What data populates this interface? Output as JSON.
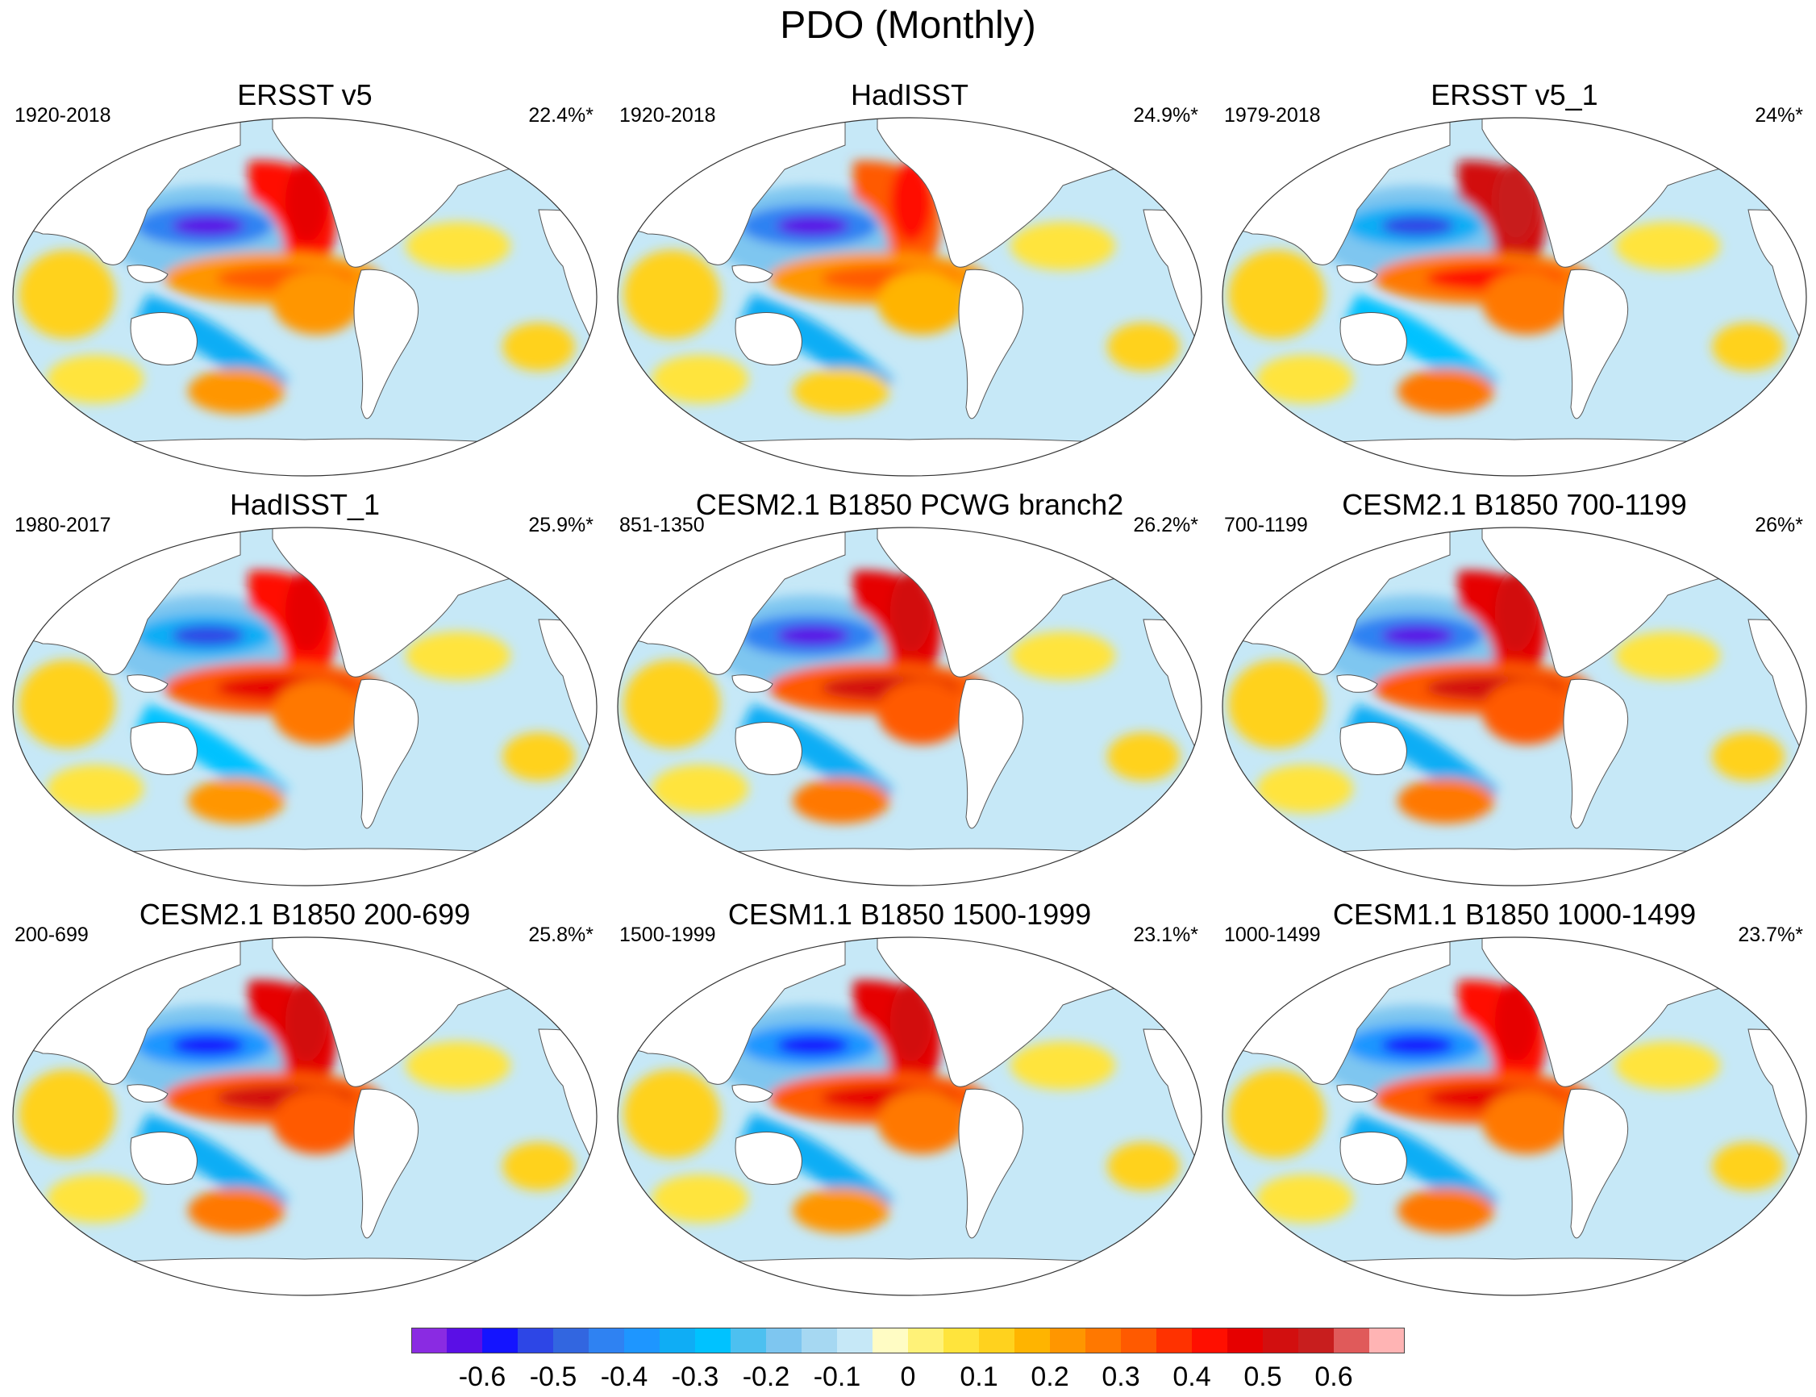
{
  "figure_title": "PDO (Monthly)",
  "chart_data": {
    "type": "heatmap",
    "title": "PDO (Monthly)",
    "projection": "Robinson (Pacific-centred)",
    "panels": [
      {
        "title": "ERSST v5",
        "period": "1920-2018",
        "variance": "22.4%*",
        "kuroshio": -0.6,
        "nepac": 0.4,
        "eq": 0.35,
        "sp": 0.2
      },
      {
        "title": "HadISST",
        "period": "1920-2018",
        "variance": "24.9%*",
        "kuroshio": -0.6,
        "nepac": 0.35,
        "eq": 0.3,
        "sp": 0.1
      },
      {
        "title": "ERSST v5_1",
        "period": "1979-2018",
        "variance": "24%*",
        "kuroshio": -0.5,
        "nepac": 0.5,
        "eq": 0.4,
        "sp": 0.25
      },
      {
        "title": "HadISST_1",
        "period": "1980-2017",
        "variance": "25.9%*",
        "kuroshio": -0.5,
        "nepac": 0.4,
        "eq": 0.45,
        "sp": 0.2
      },
      {
        "title": "CESM2.1 B1850 PCWG branch2",
        "period": "851-1350",
        "variance": "26.2%*",
        "kuroshio": -0.6,
        "nepac": 0.45,
        "eq": 0.5,
        "sp": 0.25
      },
      {
        "title": "CESM2.1 B1850 700-1199",
        "period": "700-1199",
        "variance": "26%*",
        "kuroshio": -0.6,
        "nepac": 0.45,
        "eq": 0.5,
        "sp": 0.25
      },
      {
        "title": "CESM2.1 B1850 200-699",
        "period": "200-699",
        "variance": "25.8%*",
        "kuroshio": -0.55,
        "nepac": 0.45,
        "eq": 0.5,
        "sp": 0.25
      },
      {
        "title": "CESM1.1 B1850 1500-1999",
        "period": "1500-1999",
        "variance": "23.1%*",
        "kuroshio": -0.55,
        "nepac": 0.45,
        "eq": 0.45,
        "sp": 0.2
      },
      {
        "title": "CESM1.1 B1850 1000-1499",
        "period": "1000-1499",
        "variance": "23.7%*",
        "kuroshio": -0.55,
        "nepac": 0.4,
        "eq": 0.45,
        "sp": 0.25
      }
    ],
    "colorbar": {
      "label_values": [
        "-0.6",
        "-0.5",
        "-0.4",
        "-0.3",
        "-0.2",
        "-0.1",
        "0",
        "0.1",
        "0.2",
        "0.3",
        "0.4",
        "0.5",
        "0.6"
      ],
      "range": [
        -0.7,
        0.7
      ],
      "colors": [
        "#8a2be2",
        "#5a0fe6",
        "#1414ff",
        "#2d46e6",
        "#3266e0",
        "#2f82f2",
        "#1e96ff",
        "#0fadf5",
        "#00c2ff",
        "#4dc0f0",
        "#7ec6f0",
        "#a6d8f2",
        "#c6e8f7",
        "#fffcc4",
        "#fff278",
        "#ffe43c",
        "#ffd21e",
        "#ffb400",
        "#ff9600",
        "#ff7800",
        "#ff5a00",
        "#ff3200",
        "#ff0f00",
        "#e60000",
        "#d20f0f",
        "#c81e1e",
        "#e05a5a",
        "#ffb4b4"
      ]
    },
    "land_color": "#ffffff",
    "coast_color": "#555555"
  }
}
